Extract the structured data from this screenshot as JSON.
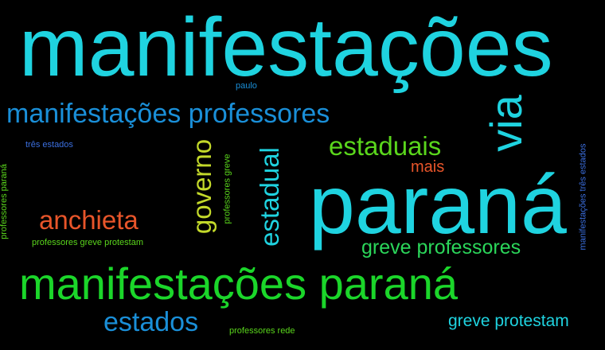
{
  "words": [
    {
      "text": "manifestações",
      "color": "#1fd3e0"
    },
    {
      "text": "paulo",
      "color": "#1a8fd8"
    },
    {
      "text": "manifestações professores",
      "color": "#1a8fd8"
    },
    {
      "text": "via",
      "color": "#1fd3e0"
    },
    {
      "text": "três estados",
      "color": "#3b6fe0"
    },
    {
      "text": "estaduais",
      "color": "#5ad61c"
    },
    {
      "text": "mais",
      "color": "#e8552a"
    },
    {
      "text": "professores paraná",
      "color": "#5ad61c"
    },
    {
      "text": "governo",
      "color": "#c3d92a"
    },
    {
      "text": "professores greve",
      "color": "#5ad61c"
    },
    {
      "text": "estadual",
      "color": "#1fd3e0"
    },
    {
      "text": "paraná",
      "color": "#1fd3e0"
    },
    {
      "text": "manifestações três estados",
      "color": "#3b6fe0"
    },
    {
      "text": "anchieta",
      "color": "#e8552a"
    },
    {
      "text": "professores greve protestam",
      "color": "#5ad61c"
    },
    {
      "text": "greve professores",
      "color": "#2bd65a"
    },
    {
      "text": "manifestações paraná",
      "color": "#1bd62a"
    },
    {
      "text": "estados",
      "color": "#1a8fd8"
    },
    {
      "text": "greve protestam",
      "color": "#1fd3e0"
    },
    {
      "text": "professores rede",
      "color": "#5ad61c"
    }
  ]
}
